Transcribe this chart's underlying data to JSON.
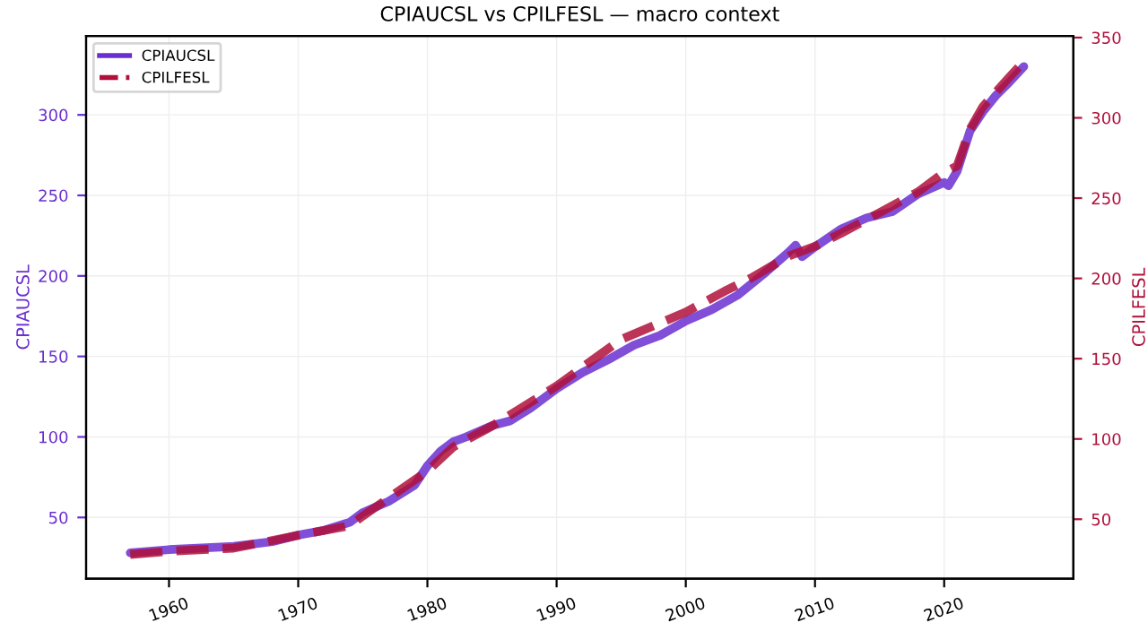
{
  "chart_data": {
    "type": "line",
    "title": "CPIAUCSL vs CPILFESL — macro context",
    "ylabel": "CPIAUCSL",
    "y2label": "CPILFESL",
    "xlim": [
      "1953-08",
      "2030-01"
    ],
    "xticks": [
      "1960",
      "1970",
      "1980",
      "1990",
      "2000",
      "2010",
      "2020"
    ],
    "ylim": [
      12,
      349
    ],
    "yticks": [
      50,
      100,
      150,
      200,
      250,
      300
    ],
    "y2lim": [
      13,
      351
    ],
    "y2ticks": [
      50,
      100,
      150,
      200,
      250,
      300,
      350
    ],
    "grid": true,
    "legend": "top left",
    "series": [
      {
        "name": "CPIAUCSL",
        "color": "#6a2fd0",
        "line_style": "solid",
        "x": [
          "1957-01",
          "1960-01",
          "1965-01",
          "1968-01",
          "1970-01",
          "1972-01",
          "1974-01",
          "1975-01",
          "1977-01",
          "1979-01",
          "1980-01",
          "1981-01",
          "1982-01",
          "1983-01",
          "1985-01",
          "1986-06",
          "1988-01",
          "1990-01",
          "1992-01",
          "1994-01",
          "1996-01",
          "1998-01",
          "2000-01",
          "2002-01",
          "2004-01",
          "2006-01",
          "2008-01",
          "2008-07",
          "2009-01",
          "2010-01",
          "2012-01",
          "2014-01",
          "2016-01",
          "2018-01",
          "2020-01",
          "2020-05",
          "2021-01",
          "2022-01",
          "2023-01",
          "2024-01",
          "2025-01",
          "2026-03"
        ],
        "values": [
          28,
          30,
          32,
          35,
          39,
          42,
          47,
          53,
          60,
          70,
          82,
          91,
          97,
          100,
          107,
          110,
          118,
          130,
          140,
          148,
          157,
          163,
          172,
          179,
          188,
          201,
          215,
          219,
          212,
          218,
          229,
          236,
          240,
          251,
          258,
          256,
          265,
          290,
          302,
          312,
          320,
          330
        ]
      },
      {
        "name": "CPILFESL",
        "color": "#b0103a",
        "line_style": "dashed",
        "axis": "y2",
        "x": [
          "1957-01",
          "1960-01",
          "1965-01",
          "1970-01",
          "1974-01",
          "1975-01",
          "1980-01",
          "1982-01",
          "1985-01",
          "1990-01",
          "1995-01",
          "2000-01",
          "2003-01",
          "2005-01",
          "2008-01",
          "2010-01",
          "2012-01",
          "2015-01",
          "2018-01",
          "2020-01",
          "2021-01",
          "2022-01",
          "2023-01",
          "2024-01",
          "2025-01",
          "2026-03"
        ],
        "values": [
          28,
          30,
          32,
          40,
          46,
          52,
          80,
          95,
          108,
          133,
          162,
          179,
          192,
          200,
          214,
          220,
          228,
          241,
          254,
          266,
          270,
          293,
          307,
          316,
          325,
          335
        ]
      }
    ]
  }
}
